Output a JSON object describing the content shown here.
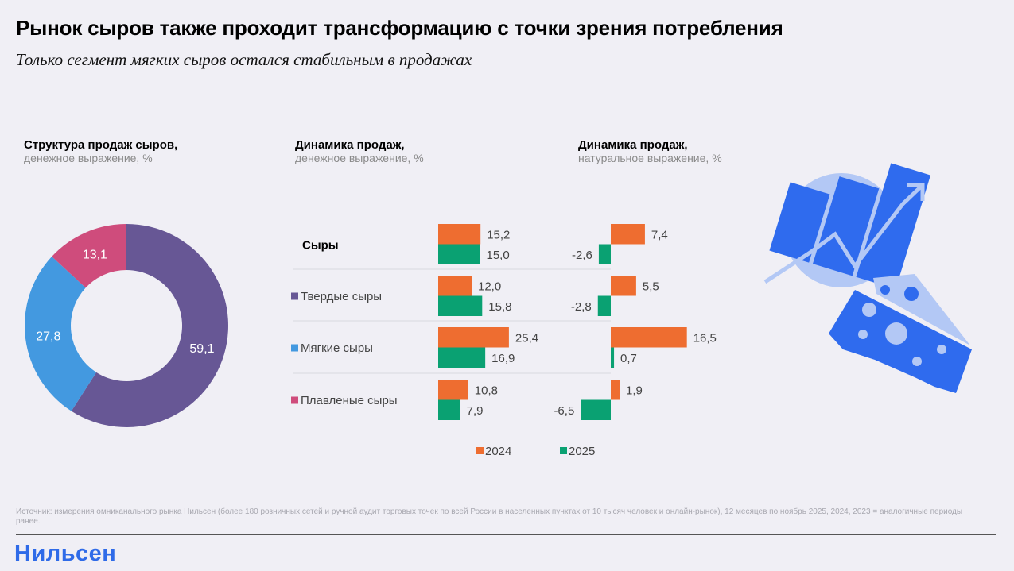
{
  "header": {
    "title": "Рынок сыров также проходит трансформацию с точки зрения потребления",
    "subtitle": "Только сегмент мягких сыров остался стабильным в продажах"
  },
  "colors": {
    "hard": "#675795",
    "soft": "#4399E0",
    "processed": "#CF4C7C",
    "year2024": "#EE6D30",
    "year2025": "#0AA172",
    "brand": "#2F6BE8",
    "illustration_dark": "#2F6BEE",
    "illustration_light": "#B3C8F5"
  },
  "chart_data": [
    {
      "type": "pie",
      "variant": "donut",
      "title": "Структура продаж сыров,",
      "subtitle": "денежное выражение, %",
      "categories": [
        "Твердые сыры",
        "Мягкие сыры",
        "Плавленые сыры"
      ],
      "values": [
        59.1,
        27.8,
        13.1
      ],
      "labels": [
        "59,1",
        "27,8",
        "13,1"
      ]
    },
    {
      "type": "bar",
      "orientation": "horizontal",
      "title": "Динамика продаж,",
      "subtitle": "денежное выражение, %",
      "categories": [
        "Сыры",
        "Твердые сыры",
        "Мягкие сыры",
        "Плавленые сыры"
      ],
      "series": [
        {
          "name": "2024",
          "values": [
            15.2,
            12.0,
            25.4,
            10.8
          ],
          "labels": [
            "15,2",
            "12,0",
            "25,4",
            "10,8"
          ]
        },
        {
          "name": "2025",
          "values": [
            15.0,
            15.8,
            16.9,
            7.9
          ],
          "labels": [
            "15,0",
            "15,8",
            "16,9",
            "7,9"
          ]
        }
      ]
    },
    {
      "type": "bar",
      "orientation": "horizontal",
      "title": "Динамика продаж,",
      "subtitle": "натуральное выражение, %",
      "categories": [
        "Сыры",
        "Твердые сыры",
        "Мягкие сыры",
        "Плавленые сыры"
      ],
      "series": [
        {
          "name": "2024",
          "values": [
            7.4,
            5.5,
            16.5,
            1.9
          ],
          "labels": [
            "7,4",
            "5,5",
            "16,5",
            "1,9"
          ]
        },
        {
          "name": "2025",
          "values": [
            -2.6,
            -2.8,
            0.7,
            -6.5
          ],
          "labels": [
            "-2,6",
            "-2,8",
            "0,7",
            "-6,5"
          ]
        }
      ]
    }
  ],
  "row_labels": [
    "Сыры",
    "Твердые сыры",
    "Мягкие сыры",
    "Плавленые сыры"
  ],
  "legend": [
    "2024",
    "2025"
  ],
  "footnote": "Источник: измерения омниканального рынка Нильсен (более 180 розничных сетей и ручной аудит торговых точек по всей России в населенных пунктах от 10 тысяч человек и онлайн-рынок), 12 месяцев по ноябрь 2025, 2024, 2023 = аналогичные периоды ранее.",
  "logo": "Нильсен",
  "illustration": "chart-and-cheese-icon"
}
